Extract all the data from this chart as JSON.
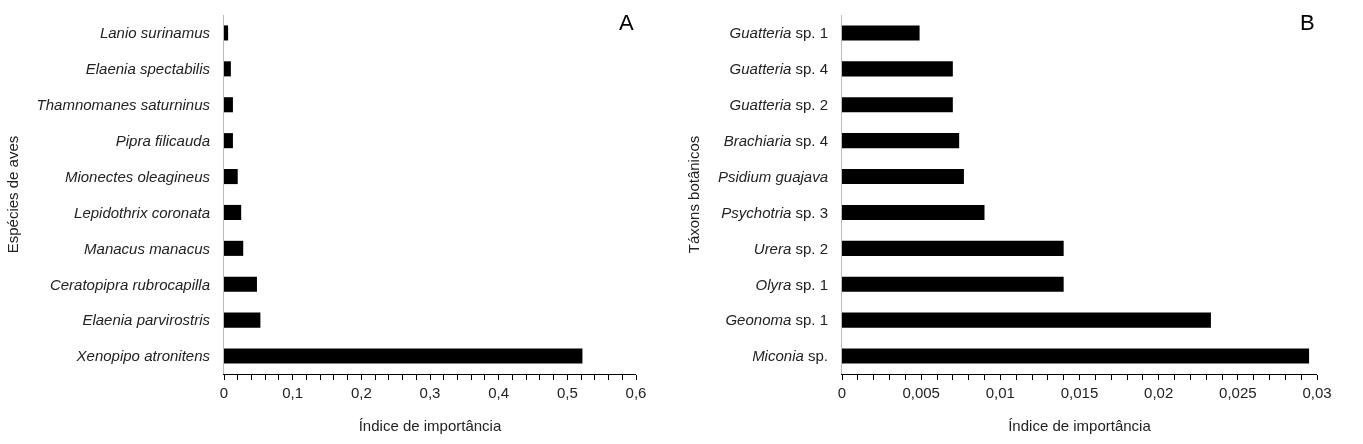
{
  "chart_data": [
    {
      "type": "bar",
      "orientation": "horizontal",
      "ylabel": "Espécies de aves",
      "xlabel": "Índice de importância",
      "annotations": [
        "A"
      ],
      "grid": false,
      "categories": [
        "Lanio surinamus",
        "Elaenia spectabilis",
        "Thamnomanes saturninus",
        "Pipra filicauda",
        "Mionectes oleagineus",
        "Lepidothrix coronata",
        "Manacus manacus",
        "Ceratopipra rubrocapilla",
        "Elaenia parvirostris",
        "Xenopipo atronitens"
      ],
      "values": [
        0.006,
        0.01,
        0.013,
        0.013,
        0.02,
        0.025,
        0.028,
        0.048,
        0.053,
        0.522
      ],
      "color": "#000000",
      "xlim": [
        0,
        0.6
      ],
      "xticks": [
        {
          "value": 0,
          "label": "0"
        },
        {
          "value": 0.02,
          "label": null
        },
        {
          "value": 0.04,
          "label": null
        },
        {
          "value": 0.06,
          "label": null
        },
        {
          "value": 0.08,
          "label": null
        },
        {
          "value": 0.1,
          "label": "0,1"
        },
        {
          "value": 0.12,
          "label": null
        },
        {
          "value": 0.14,
          "label": null
        },
        {
          "value": 0.16,
          "label": null
        },
        {
          "value": 0.18,
          "label": null
        },
        {
          "value": 0.2,
          "label": "0,2"
        },
        {
          "value": 0.22,
          "label": null
        },
        {
          "value": 0.24,
          "label": null
        },
        {
          "value": 0.26,
          "label": null
        },
        {
          "value": 0.28,
          "label": null
        },
        {
          "value": 0.3,
          "label": "0,3"
        },
        {
          "value": 0.32,
          "label": null
        },
        {
          "value": 0.34,
          "label": null
        },
        {
          "value": 0.36,
          "label": null
        },
        {
          "value": 0.38,
          "label": null
        },
        {
          "value": 0.4,
          "label": "0,4"
        },
        {
          "value": 0.42,
          "label": null
        },
        {
          "value": 0.44,
          "label": null
        },
        {
          "value": 0.46,
          "label": null
        },
        {
          "value": 0.48,
          "label": null
        },
        {
          "value": 0.5,
          "label": "0,5"
        },
        {
          "value": 0.52,
          "label": null
        },
        {
          "value": 0.54,
          "label": null
        },
        {
          "value": 0.56,
          "label": null
        },
        {
          "value": 0.58,
          "label": null
        },
        {
          "value": 0.6,
          "label": "0,6"
        }
      ]
    },
    {
      "type": "bar",
      "orientation": "horizontal",
      "ylabel": "Táxons botânicos",
      "xlabel": "Índice de importância",
      "annotations": [
        "B"
      ],
      "grid": false,
      "categories": [
        "Guatteria sp. 1",
        "Guatteria sp. 4",
        "Guatteria sp. 2",
        "Brachiaria sp. 4",
        "Psidium guajava",
        "Psychotria sp. 3",
        "Urera sp. 2",
        "Olyra sp. 1",
        "Geonoma sp. 1",
        "Miconia sp."
      ],
      "values": [
        0.0049,
        0.007,
        0.007,
        0.0074,
        0.0077,
        0.009,
        0.014,
        0.014,
        0.0233,
        0.0295
      ],
      "color": "#000000",
      "xlim": [
        0,
        0.03
      ],
      "xticks": [
        {
          "value": 0,
          "label": "0"
        },
        {
          "value": 0.001,
          "label": null
        },
        {
          "value": 0.002,
          "label": null
        },
        {
          "value": 0.003,
          "label": null
        },
        {
          "value": 0.004,
          "label": null
        },
        {
          "value": 0.005,
          "label": "0,005"
        },
        {
          "value": 0.006,
          "label": null
        },
        {
          "value": 0.007,
          "label": null
        },
        {
          "value": 0.008,
          "label": null
        },
        {
          "value": 0.009,
          "label": null
        },
        {
          "value": 0.01,
          "label": "0,01"
        },
        {
          "value": 0.011,
          "label": null
        },
        {
          "value": 0.012,
          "label": null
        },
        {
          "value": 0.013,
          "label": null
        },
        {
          "value": 0.014,
          "label": null
        },
        {
          "value": 0.015,
          "label": "0,015"
        },
        {
          "value": 0.016,
          "label": null
        },
        {
          "value": 0.017,
          "label": null
        },
        {
          "value": 0.018,
          "label": null
        },
        {
          "value": 0.019,
          "label": null
        },
        {
          "value": 0.02,
          "label": "0,02"
        },
        {
          "value": 0.021,
          "label": null
        },
        {
          "value": 0.022,
          "label": null
        },
        {
          "value": 0.023,
          "label": null
        },
        {
          "value": 0.024,
          "label": null
        },
        {
          "value": 0.025,
          "label": "0,025"
        },
        {
          "value": 0.026,
          "label": null
        },
        {
          "value": 0.027,
          "label": null
        },
        {
          "value": 0.028,
          "label": null
        },
        {
          "value": 0.029,
          "label": null
        },
        {
          "value": 0.03,
          "label": "0,03"
        }
      ]
    }
  ]
}
